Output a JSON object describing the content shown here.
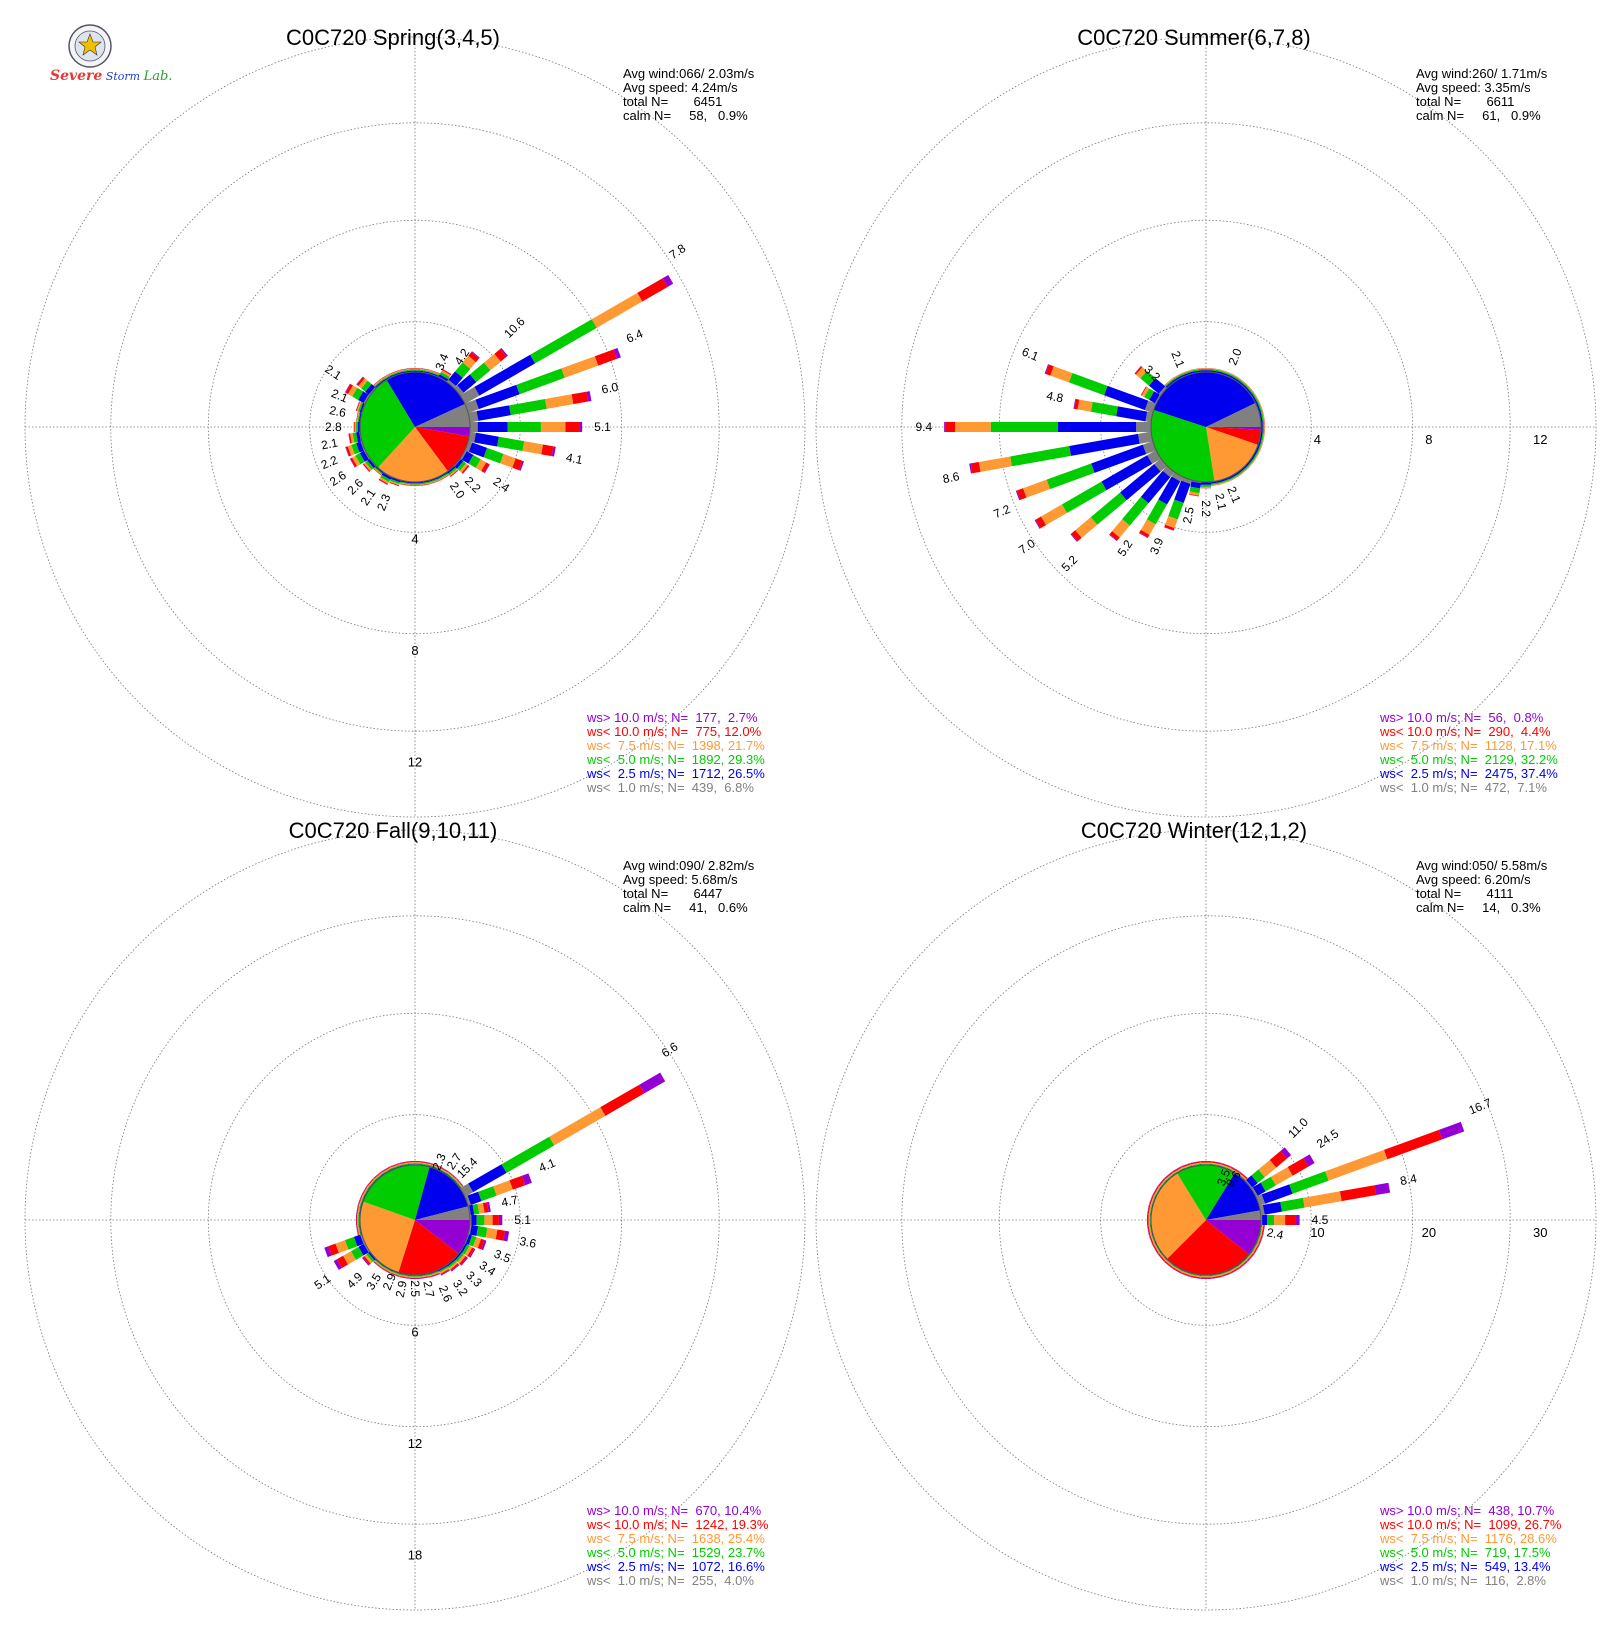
{
  "logo": {
    "primary": "Severe",
    "secondary": "Storm",
    "lab": "Lab."
  },
  "legend_classes": [
    {
      "label": "ws> 10.0 m/s; N=",
      "color": "#9400d3"
    },
    {
      "label": "ws< 10.0 m/s; N=",
      "color": "#ff0000"
    },
    {
      "label": "ws<  7.5 m/s; N=",
      "color": "#ff9933"
    },
    {
      "label": "ws<  5.0 m/s; N=",
      "color": "#00cc00"
    },
    {
      "label": "ws<  2.5 m/s; N=",
      "color": "#0000ee"
    },
    {
      "label": "ws<  1.0 m/s; N=",
      "color": "#808080"
    }
  ],
  "chart_data": [
    {
      "type": "windrose",
      "title": "C0C720 Spring(3,4,5)",
      "stats": [
        "Avg wind:066/ 2.03m/s",
        "Avg speed: 4.24m/s",
        "total N=       6451",
        "calm N=     58,   0.9%"
      ],
      "legend_values": [
        "177,  2.7%",
        "775, 12.0%",
        "1398, 21.7%",
        "1892, 29.3%",
        "1712, 26.5%",
        "439,  6.8%"
      ],
      "ring_labels": [
        "4",
        "8",
        "12"
      ],
      "rmax": 14,
      "label_direction": "down",
      "sector_labels": [
        {
          "dir": 22.5,
          "text": "3.4"
        },
        {
          "dir": 33.75,
          "text": "4.2"
        },
        {
          "dir": 45,
          "text": "10.6"
        },
        {
          "dir": 56.25,
          "text": "7.8"
        },
        {
          "dir": 67.5,
          "text": "6.4"
        },
        {
          "dir": 78.75,
          "text": "6.0"
        },
        {
          "dir": 90,
          "text": "5.1"
        },
        {
          "dir": 101.25,
          "text": "4.1"
        },
        {
          "dir": 123.75,
          "text": "2.4"
        },
        {
          "dir": 135,
          "text": "2.2"
        },
        {
          "dir": 146.25,
          "text": "2.0"
        },
        {
          "dir": 202.5,
          "text": "2.3"
        },
        {
          "dir": 213.75,
          "text": "2.1"
        },
        {
          "dir": 225,
          "text": "2.6"
        },
        {
          "dir": 236.25,
          "text": "2.6"
        },
        {
          "dir": 247.5,
          "text": "2.2"
        },
        {
          "dir": 258.75,
          "text": "2.1"
        },
        {
          "dir": 270,
          "text": "2.8"
        },
        {
          "dir": 281.25,
          "text": "2.6"
        },
        {
          "dir": 292.5,
          "text": "2.1"
        },
        {
          "dir": 303.75,
          "text": "2.1"
        }
      ],
      "sectors": [
        1.5,
        1.7,
        1.8,
        2.3,
        3.4,
        4.2,
        10.6,
        7.8,
        6.4,
        6.0,
        5.1,
        4.1,
        3.0,
        2.4,
        2.2,
        2.0,
        1.9,
        1.9,
        1.9,
        2.0,
        2.2,
        2.3,
        2.1,
        2.3,
        2.6,
        2.6,
        2.4,
        2.2,
        2.1,
        2.2,
        2.8,
        2.6,
        2.1,
        2.1,
        1.9,
        1.6
      ],
      "pie": [
        2.7,
        12.0,
        21.7,
        29.3,
        26.5,
        6.8
      ]
    },
    {
      "type": "windrose",
      "title": "C0C720 Summer(6,7,8)",
      "stats": [
        "Avg wind:260/ 1.71m/s",
        "Avg speed: 3.35m/s",
        "total N=       6611",
        "calm N=     61,   0.9%"
      ],
      "legend_values": [
        "56,  0.8%",
        "290,  4.4%",
        "1128, 17.1%",
        "2129, 32.2%",
        "2475, 37.4%",
        "472,  7.1%"
      ],
      "ring_labels": [
        "4",
        "8",
        "12"
      ],
      "rmax": 14,
      "label_direction": "right",
      "sector_labels": [
        {
          "dir": 22.5,
          "text": "2.0"
        },
        {
          "dir": 157.5,
          "text": "2.1"
        },
        {
          "dir": 168.75,
          "text": "2.1"
        },
        {
          "dir": 180,
          "text": "2.2"
        },
        {
          "dir": 191.25,
          "text": "2.5"
        },
        {
          "dir": 202.5,
          "text": "3.9"
        },
        {
          "dir": 213.75,
          "text": "5.2"
        },
        {
          "dir": 225,
          "text": "5.2"
        },
        {
          "dir": 236.25,
          "text": "7.0"
        },
        {
          "dir": 247.5,
          "text": "7.2"
        },
        {
          "dir": 258.75,
          "text": "8.6"
        },
        {
          "dir": 270,
          "text": "9.4"
        },
        {
          "dir": 281.25,
          "text": "4.8"
        },
        {
          "dir": 292.5,
          "text": "6.1"
        },
        {
          "dir": 315,
          "text": "3.2"
        },
        {
          "dir": 337.5,
          "text": "2.1"
        }
      ],
      "sectors": [
        1.6,
        1.6,
        2.0,
        1.7,
        1.6,
        1.5,
        1.4,
        1.3,
        1.3,
        1.4,
        1.3,
        1.4,
        1.5,
        1.6,
        1.7,
        1.8,
        1.9,
        2.0,
        2.2,
        2.5,
        3.9,
        4.5,
        5.2,
        6.2,
        7.0,
        7.2,
        8.6,
        9.4,
        4.8,
        6.1,
        2.6,
        3.2,
        2.0,
        2.1,
        1.9,
        1.7
      ],
      "pie": [
        0.8,
        4.4,
        17.1,
        32.2,
        37.4,
        7.1
      ]
    },
    {
      "type": "windrose",
      "title": "C0C720 Fall(9,10,11)",
      "stats": [
        "Avg wind:090/ 2.82m/s",
        "Avg speed: 5.68m/s",
        "total N=       6447",
        "calm N=     41,   0.6%"
      ],
      "legend_values": [
        "670, 10.4%",
        "1242, 19.3%",
        "1638, 25.4%",
        "1529, 23.7%",
        "1072, 16.6%",
        "255,  4.0%"
      ],
      "ring_labels": [
        "6",
        "12",
        "18"
      ],
      "rmax": 21,
      "label_direction": "down",
      "sector_labels": [
        {
          "dir": 22.5,
          "text": "2.3"
        },
        {
          "dir": 33.75,
          "text": "2.7"
        },
        {
          "dir": 45,
          "text": "15.4"
        },
        {
          "dir": 56.25,
          "text": "6.6"
        },
        {
          "dir": 67.5,
          "text": "4.1"
        },
        {
          "dir": 78.75,
          "text": "4.7"
        },
        {
          "dir": 90,
          "text": "5.1"
        },
        {
          "dir": 101.25,
          "text": "3.6"
        },
        {
          "dir": 112.5,
          "text": "3.5"
        },
        {
          "dir": 123.75,
          "text": "3.4"
        },
        {
          "dir": 135,
          "text": "3.3"
        },
        {
          "dir": 146.25,
          "text": "3.2"
        },
        {
          "dir": 157.5,
          "text": "2.6"
        },
        {
          "dir": 168.75,
          "text": "2.7"
        },
        {
          "dir": 180,
          "text": "2.5"
        },
        {
          "dir": 191.25,
          "text": "2.9"
        },
        {
          "dir": 202.5,
          "text": "2.9"
        },
        {
          "dir": 213.75,
          "text": "3.5"
        },
        {
          "dir": 225,
          "text": "4.9"
        },
        {
          "dir": 236.25,
          "text": "5.1"
        }
      ],
      "sectors": [
        1.9,
        2.0,
        2.3,
        2.7,
        2.3,
        2.7,
        15.4,
        6.6,
        4.1,
        4.7,
        5.1,
        4.0,
        3.6,
        3.5,
        3.4,
        3.3,
        3.2,
        2.7,
        2.6,
        2.7,
        2.5,
        2.9,
        2.9,
        3.5,
        4.9,
        5.1,
        2.6,
        2.5,
        2.4,
        2.3,
        2.3,
        2.3,
        2.2,
        2.1,
        2.1,
        2.0
      ],
      "pie": [
        10.4,
        19.3,
        25.4,
        23.7,
        16.6,
        4.0
      ]
    },
    {
      "type": "windrose",
      "title": "C0C720 Winter(12,1,2)",
      "stats": [
        "Avg wind:050/ 5.58m/s",
        "Avg speed: 6.20m/s",
        "total N=       4111",
        "calm N=     14,   0.3%"
      ],
      "legend_values": [
        "438, 10.7%",
        "1099, 26.7%",
        "1176, 28.6%",
        "719, 17.5%",
        "549, 13.4%",
        "116,  2.8%"
      ],
      "ring_labels": [
        "10",
        "20",
        "30"
      ],
      "rmax": 35,
      "label_direction": "right",
      "sector_labels": [
        {
          "dir": 22.5,
          "text": "3.5"
        },
        {
          "dir": 33.75,
          "text": "9.6"
        },
        {
          "dir": 45,
          "text": "11.0"
        },
        {
          "dir": 56.25,
          "text": "24.5"
        },
        {
          "dir": 67.5,
          "text": "16.7"
        },
        {
          "dir": 78.75,
          "text": "8.4"
        },
        {
          "dir": 90,
          "text": "4.5"
        },
        {
          "dir": 101.25,
          "text": "2.4"
        }
      ],
      "sectors": [
        2.0,
        2.1,
        2.3,
        2.6,
        3.5,
        9.6,
        11.0,
        24.5,
        16.7,
        8.4,
        4.5,
        2.4,
        1.4,
        1.2,
        1.1,
        1.0,
        1.0,
        1.0,
        1.0,
        1.0,
        1.0,
        1.0,
        1.0,
        1.0,
        1.0,
        1.1,
        1.2,
        1.3,
        1.4,
        1.5,
        1.6,
        1.8,
        1.9,
        2.0,
        2.0,
        2.0
      ],
      "pie": [
        10.7,
        26.7,
        28.6,
        17.5,
        13.4,
        2.8
      ]
    }
  ]
}
